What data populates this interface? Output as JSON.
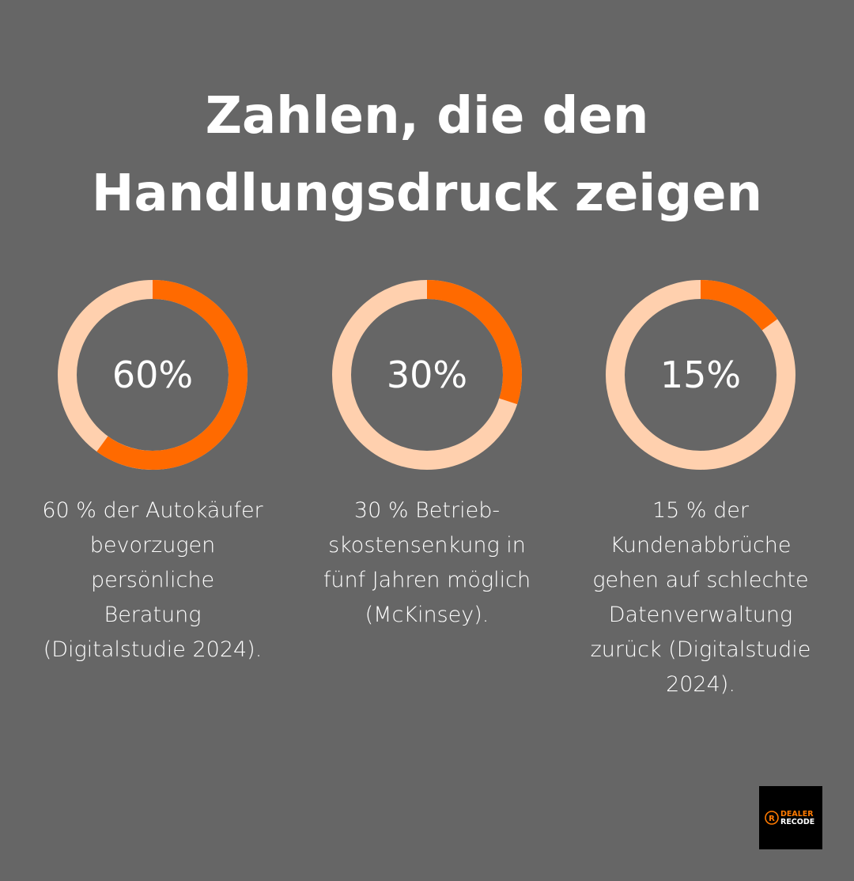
{
  "title_lines": [
    "Zahlen, die den",
    "Handlungsdruck zeigen"
  ],
  "colors": {
    "background": "#666666",
    "accent": "#ff6a00",
    "track": "#ffd0ae",
    "text": "#ffffff"
  },
  "chart_data": [
    {
      "type": "pie",
      "variant": "donut",
      "label": "60%",
      "values": [
        60,
        40
      ],
      "description_lines": [
        "60 % der Autokäufer",
        "bevorzugen",
        "persönliche",
        "Beratung",
        "(Digitalstudie 2024)."
      ]
    },
    {
      "type": "pie",
      "variant": "donut",
      "label": "30%",
      "values": [
        30,
        70
      ],
      "description_lines": [
        "30 % Betrieb-",
        "skostensenkung in",
        "fünf Jahren möglich",
        "(McKinsey)."
      ]
    },
    {
      "type": "pie",
      "variant": "donut",
      "label": "15%",
      "values": [
        15,
        85
      ],
      "description_lines": [
        "15 % der",
        "Kundenabbrüche",
        "gehen auf schlechte",
        "Datenverwaltung",
        "zurück (Digitalstudie",
        "2024)."
      ]
    }
  ],
  "logo": {
    "line1": "DEALER",
    "line2": "RECODE"
  }
}
